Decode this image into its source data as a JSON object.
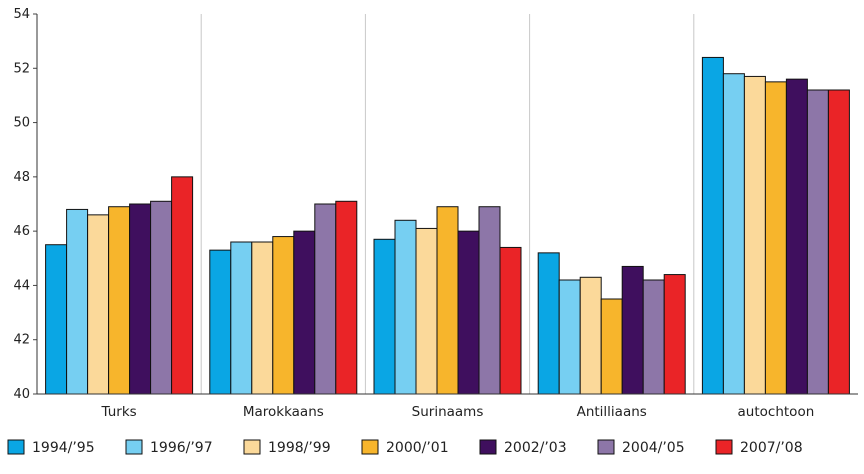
{
  "chart_data": {
    "type": "bar",
    "title": "",
    "xlabel": "",
    "ylabel": "",
    "ylim": [
      40,
      54
    ],
    "yticks": [
      "40",
      "42",
      "44",
      "46",
      "48",
      "50",
      "52",
      "54"
    ],
    "grid": "vertical separators between categories",
    "legend_position": "bottom",
    "categories": [
      "Turks",
      "Marokkaans",
      "Surinaams",
      "Antilliaans",
      "autochtoon"
    ],
    "series": [
      {
        "name": "1994/’95",
        "color": "#0aa6e4",
        "values": [
          45.5,
          45.3,
          45.7,
          45.2,
          52.4
        ]
      },
      {
        "name": "1996/’97",
        "color": "#76cff2",
        "values": [
          46.8,
          45.6,
          46.4,
          44.2,
          51.8
        ]
      },
      {
        "name": "1998/’99",
        "color": "#fbd99a",
        "values": [
          46.6,
          45.6,
          46.1,
          44.3,
          51.7
        ]
      },
      {
        "name": "2000/’01",
        "color": "#f7b52c",
        "values": [
          46.9,
          45.8,
          46.9,
          43.5,
          51.5
        ]
      },
      {
        "name": "2002/’03",
        "color": "#3f0f5e",
        "values": [
          47.0,
          46.0,
          46.0,
          44.7,
          51.6
        ]
      },
      {
        "name": "2004/’05",
        "color": "#8d76a8",
        "values": [
          47.1,
          47.0,
          46.9,
          44.2,
          51.2
        ]
      },
      {
        "name": "2007/’08",
        "color": "#ea2427",
        "values": [
          48.0,
          47.1,
          45.4,
          44.4,
          51.2
        ]
      }
    ]
  }
}
